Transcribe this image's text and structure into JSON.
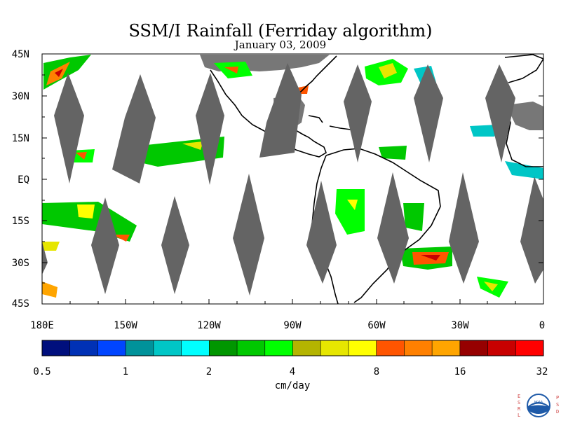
{
  "title": "SSM/I Rainfall (Ferriday algorithm)",
  "date": "January 03, 2009",
  "lat_labels": [
    "45N",
    "30N",
    "15N",
    "EQ",
    "15S",
    "30S",
    "45S"
  ],
  "lon_labels": [
    "180E",
    "150W",
    "120W",
    "90W",
    "60W",
    "30W",
    "0"
  ],
  "colorbar": {
    "colors": [
      "#000f7d",
      "#0031b5",
      "#0045ff",
      "#00929a",
      "#00c6c6",
      "#00ffff",
      "#009600",
      "#00c800",
      "#00ff00",
      "#b4b400",
      "#e6e600",
      "#ffff00",
      "#ff5500",
      "#ff8000",
      "#ffa500",
      "#960000",
      "#c80000",
      "#ff0000"
    ],
    "tick_labels": [
      "0.5",
      "1",
      "2",
      "4",
      "8",
      "16",
      "32"
    ],
    "unit": "cm/day"
  },
  "colors": {
    "swath_gap": "#646464",
    "land_mask": "#777777",
    "coastline": "#000000"
  },
  "logo": {
    "left_letters": "ESRL",
    "right_letters": "PSD",
    "emblem": "NOAA"
  }
}
